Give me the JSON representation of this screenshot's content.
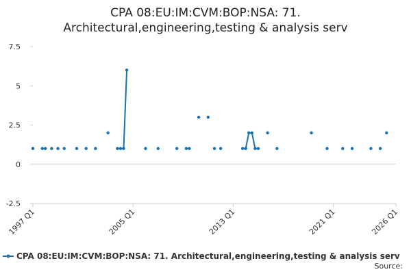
{
  "chart_data": {
    "type": "line",
    "title": [
      "CPA 08:EU:IM:CVM:BOP:NSA: 71.",
      "Architectural,engineering,testing & analysis serv"
    ],
    "x": [
      "1997 Q1",
      "1997 Q2",
      "1997 Q4",
      "1998 Q1",
      "1998 Q2",
      "1998 Q3",
      "1998 Q4",
      "1999 Q1",
      "1999 Q2",
      "1999 Q3",
      "1999 Q4",
      "2000 Q3",
      "2000 Q4",
      "2001 Q2",
      "2001 Q3",
      "2002 Q1",
      "2002 Q2",
      "2003 Q1",
      "2003 Q2",
      "2003 Q4",
      "2004 Q1",
      "2004 Q2",
      "2004 Q3",
      "2004 Q4",
      "2006 Q1",
      "2006 Q2",
      "2007 Q1",
      "2007 Q2",
      "2008 Q3",
      "2008 Q4",
      "2009 Q2",
      "2009 Q3",
      "2009 Q4",
      "2010 Q2",
      "2010 Q3",
      "2011 Q1",
      "2011 Q2",
      "2011 Q3",
      "2011 Q4",
      "2012 Q1",
      "2012 Q2",
      "2013 Q4",
      "2014 Q1",
      "2014 Q2",
      "2014 Q3",
      "2014 Q4",
      "2015 Q1",
      "2015 Q2",
      "2015 Q4",
      "2016 Q1",
      "2016 Q3",
      "2016 Q4",
      "2019 Q2",
      "2019 Q3",
      "2020 Q3",
      "2020 Q4",
      "2021 Q4",
      "2022 Q1",
      "2022 Q3",
      "2022 Q4",
      "2024 Q1",
      "2024 Q2",
      "2024 Q4",
      "2025 Q1",
      "2025 Q2"
    ],
    "series": [
      {
        "name": "CPA 08:EU:IM:CVM:BOP:NSA: 71. Architectural,engineering,testing & analysis serv",
        "color": "#1a6fb0",
        "values": [
          1,
          null,
          1,
          1,
          null,
          1,
          null,
          1,
          null,
          1,
          null,
          1,
          null,
          1,
          null,
          1,
          null,
          2,
          null,
          1,
          1,
          1,
          6,
          null,
          1,
          null,
          1,
          null,
          1,
          null,
          1,
          1,
          null,
          3,
          null,
          3,
          null,
          1,
          null,
          1,
          null,
          1,
          1,
          2,
          2,
          1,
          1,
          null,
          2,
          null,
          1,
          null,
          2,
          null,
          1,
          null,
          1,
          null,
          1,
          null,
          1,
          null,
          1,
          null,
          2
        ]
      }
    ],
    "xlim": [
      "1997 Q1",
      "2026 Q1"
    ],
    "xticks": [
      "1997 Q1",
      "2005 Q1",
      "2013 Q1",
      "2021 Q1",
      "2026 Q1"
    ],
    "ylim": [
      -2.5,
      7.5
    ],
    "yticks": [
      7.5,
      5,
      2.5,
      0,
      -2.5
    ],
    "grid": false,
    "source": "Source:"
  }
}
